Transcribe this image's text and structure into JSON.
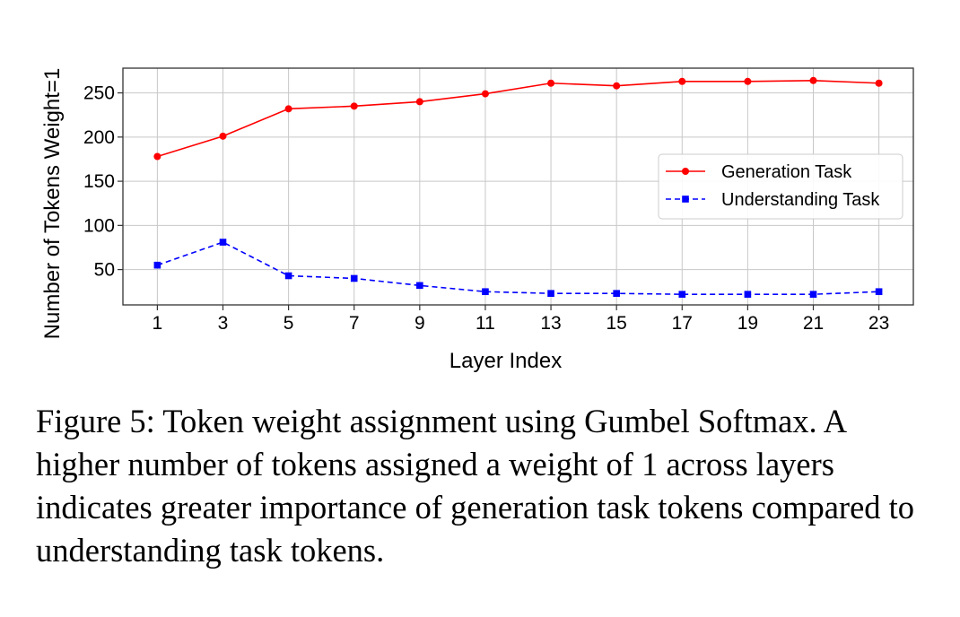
{
  "chart_data": {
    "type": "line",
    "title": "",
    "xlabel": "Layer Index",
    "ylabel": "Number of Tokens Weight=1",
    "x": [
      1,
      3,
      5,
      7,
      9,
      11,
      13,
      15,
      17,
      19,
      21,
      23
    ],
    "xticks": [
      "1",
      "3",
      "5",
      "7",
      "9",
      "11",
      "13",
      "15",
      "17",
      "19",
      "21",
      "23"
    ],
    "yticks": [
      "50",
      "100",
      "150",
      "200",
      "250"
    ],
    "ylim": [
      10,
      278
    ],
    "xlim": [
      -0.05,
      24.05
    ],
    "grid": true,
    "legend_position": "right",
    "series": [
      {
        "name": "Generation Task",
        "color": "#ff0000",
        "marker": "circle",
        "linestyle": "solid",
        "values": [
          178,
          201,
          232,
          235,
          240,
          249,
          261,
          258,
          263,
          263,
          264,
          261
        ]
      },
      {
        "name": "Understanding Task",
        "color": "#0000ff",
        "marker": "square",
        "linestyle": "dashed",
        "values": [
          55,
          81,
          43,
          40,
          32,
          25,
          23,
          23,
          22,
          22,
          22,
          25
        ]
      }
    ]
  },
  "caption": "Figure 5: Token weight assignment using Gumbel Softmax. A higher number of tokens assigned a weight of 1 across layers indicates greater importance of generation task tokens compared to understanding task tokens."
}
